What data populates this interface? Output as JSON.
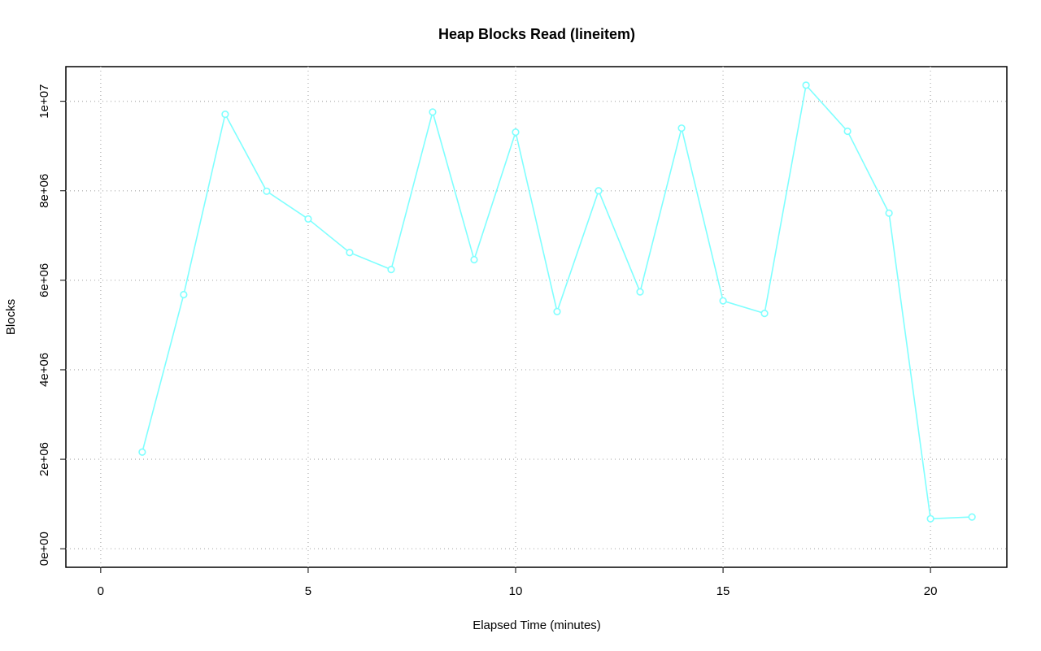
{
  "chart_data": {
    "type": "line",
    "title": "Heap Blocks Read (lineitem)",
    "xlabel": "Elapsed Time (minutes)",
    "ylabel": "Blocks",
    "x": [
      1,
      2,
      3,
      4,
      5,
      6,
      7,
      8,
      9,
      10,
      11,
      12,
      13,
      14,
      15,
      16,
      17,
      18,
      19,
      20,
      21
    ],
    "series": [
      {
        "name": "lineitem",
        "color": "#7fffff",
        "values": [
          2160000,
          5680000,
          9710000,
          7990000,
          7370000,
          6620000,
          6240000,
          9760000,
          6460000,
          9310000,
          5300000,
          8000000,
          5740000,
          9400000,
          5540000,
          5260000,
          10360000,
          9330000,
          7500000,
          670000,
          710000
        ]
      }
    ],
    "xlim": [
      -0.84,
      21.84
    ],
    "xticks": [
      0,
      5,
      10,
      15,
      20
    ],
    "ylim": [
      -414400,
      10774400
    ],
    "yticks": [
      {
        "value": 0,
        "label": "0e+00"
      },
      {
        "value": 2000000,
        "label": "2e+06"
      },
      {
        "value": 4000000,
        "label": "4e+06"
      },
      {
        "value": 6000000,
        "label": "6e+06"
      },
      {
        "value": 8000000,
        "label": "8e+06"
      },
      {
        "value": 10000000,
        "label": "1e+07"
      }
    ],
    "grid": true
  }
}
